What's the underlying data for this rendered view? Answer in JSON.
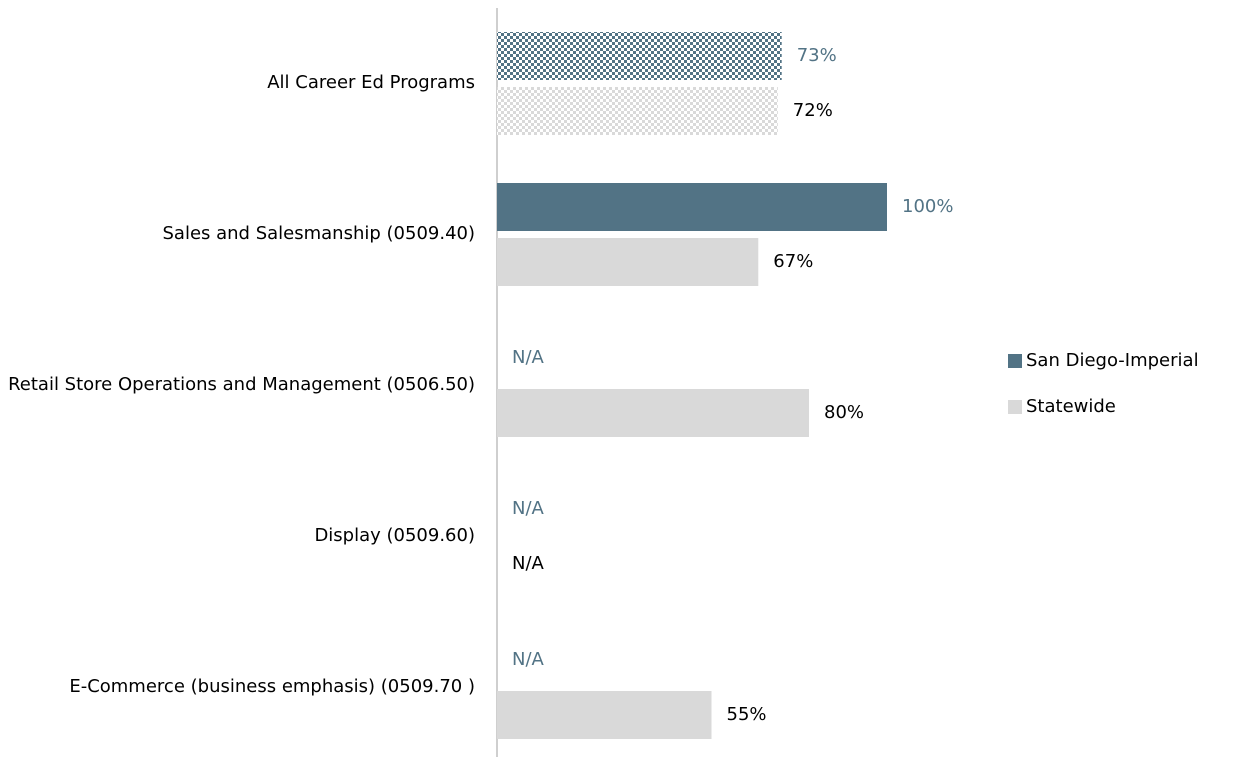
{
  "chart_data": {
    "type": "bar",
    "orientation": "horizontal",
    "categories": [
      "All Career Ed Programs",
      "Sales and Salesmanship (0509.40)",
      "Retail Store Operations and Management (0506.50)",
      "Display (0509.60)",
      "E-Commerce (business emphasis) (0509.70 )"
    ],
    "series": [
      {
        "name": "San Diego-Imperial",
        "color": "#527385",
        "values": [
          73,
          100,
          null,
          null,
          null
        ],
        "value_labels": [
          "73%",
          "100%",
          "N/A",
          "N/A",
          "N/A"
        ]
      },
      {
        "name": "Statewide",
        "color": "#d9d9d9",
        "values": [
          72,
          67,
          80,
          null,
          55
        ],
        "value_labels": [
          "72%",
          "67%",
          "80%",
          "N/A",
          "55%"
        ]
      }
    ],
    "xlim": [
      0,
      100
    ],
    "legend": "right"
  }
}
